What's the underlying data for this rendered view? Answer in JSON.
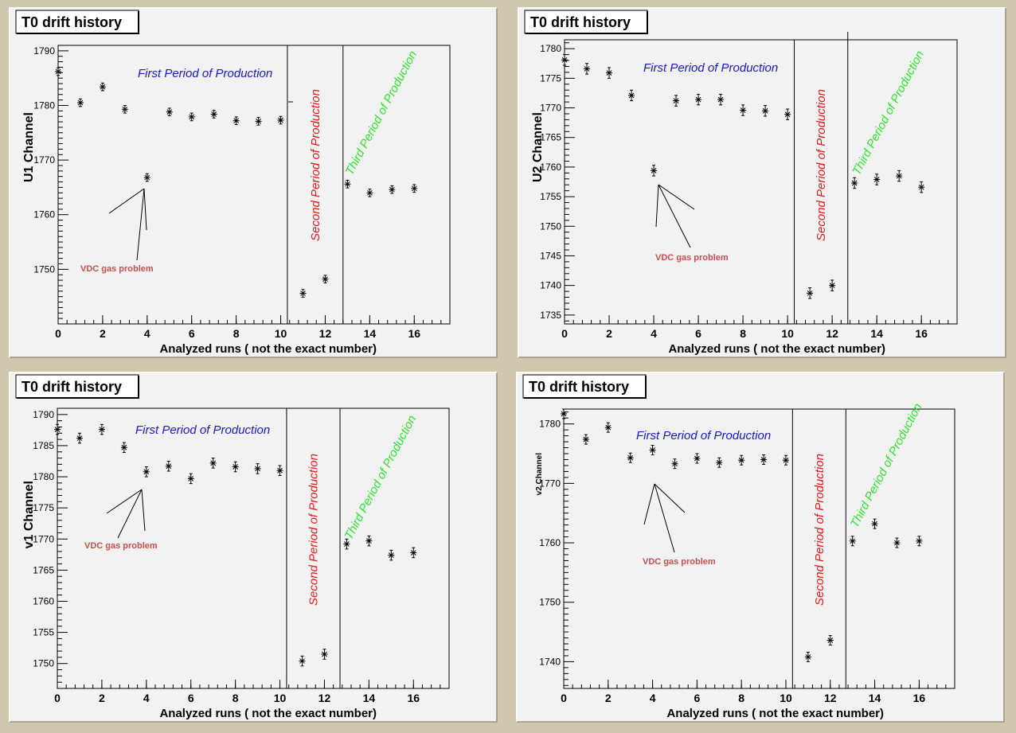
{
  "colors": {
    "background": "#cfc7ae",
    "panel": "#f2f2f2",
    "first_period": "#1a16d0",
    "second_period": "#e8171a",
    "third_period": "#2ee62e",
    "gas_label": "#c9504f"
  },
  "labels": {
    "first_period": "First Period of Production",
    "second_period": "Second Period of Production",
    "third_period": "Third Period of Production",
    "gas_problem": "VDC gas problem"
  },
  "chart_data": [
    {
      "type": "scatter",
      "title": "T0 drift history",
      "xlabel": "Analyzed runs ( not the exact number)",
      "ylabel": "U1 Channel",
      "xlim": [
        0,
        17.6
      ],
      "ylim": [
        1740,
        1791
      ],
      "x_ticks": [
        0,
        2,
        4,
        6,
        8,
        10,
        12,
        14,
        16
      ],
      "y_ticks": [
        1750,
        1760,
        1770,
        1780,
        1790
      ],
      "y_minor_step": 1,
      "period_boundaries": [
        10.3,
        12.8
      ],
      "x": [
        0,
        1,
        2,
        3,
        4,
        5,
        6,
        7,
        8,
        9,
        10,
        11,
        12,
        13,
        14,
        15,
        16
      ],
      "y": [
        1786.2,
        1780.5,
        1783.4,
        1779.3,
        1766.8,
        1778.8,
        1777.9,
        1778.4,
        1777.2,
        1777.1,
        1777.3,
        1745.6,
        1748.2,
        1765.6,
        1764.0,
        1764.6,
        1764.8
      ],
      "yerr": 0.7
    },
    {
      "type": "scatter",
      "title": "T0 drift history",
      "xlabel": "Analyzed runs ( not the exact number)",
      "ylabel": "U2 Channel",
      "xlim": [
        0,
        17.6
      ],
      "ylim": [
        1733.5,
        1781.5
      ],
      "x_ticks": [
        0,
        2,
        4,
        6,
        8,
        10,
        12,
        14,
        16
      ],
      "y_ticks": [
        1735,
        1740,
        1745,
        1750,
        1755,
        1760,
        1765,
        1770,
        1775,
        1780
      ],
      "y_minor_step": 1,
      "period_boundaries": [
        10.3,
        12.7
      ],
      "x": [
        0,
        1,
        2,
        3,
        4,
        5,
        6,
        7,
        8,
        9,
        10,
        11,
        12,
        13,
        14,
        15,
        16
      ],
      "y": [
        1778.1,
        1776.6,
        1775.9,
        1772.1,
        1759.4,
        1771.2,
        1771.4,
        1771.4,
        1769.6,
        1769.5,
        1768.9,
        1738.7,
        1740.0,
        1757.3,
        1757.9,
        1758.5,
        1756.6
      ],
      "yerr": 0.9
    },
    {
      "type": "scatter",
      "title": "T0 drift history",
      "xlabel": "Analyzed runs ( not the exact number)",
      "ylabel": "v1 Channel",
      "xlim": [
        0,
        17.6
      ],
      "ylim": [
        1746,
        1791
      ],
      "x_ticks": [
        0,
        2,
        4,
        6,
        8,
        10,
        12,
        14,
        16
      ],
      "y_ticks": [
        1750,
        1755,
        1760,
        1765,
        1770,
        1775,
        1780,
        1785,
        1790
      ],
      "y_minor_step": 1,
      "period_boundaries": [
        10.3,
        12.7
      ],
      "x": [
        0,
        1,
        2,
        3,
        4,
        5,
        6,
        7,
        8,
        9,
        10,
        11,
        12,
        13,
        14,
        15,
        16
      ],
      "y": [
        1787.6,
        1786.2,
        1787.6,
        1784.7,
        1780.8,
        1781.7,
        1779.7,
        1782.2,
        1781.6,
        1781.3,
        1781.0,
        1750.4,
        1751.5,
        1769.2,
        1769.7,
        1767.4,
        1767.8
      ],
      "yerr": 0.8
    },
    {
      "type": "scatter",
      "title": "T0 drift history",
      "xlabel": "Analyzed runs ( not the exact number)",
      "ylabel": "v2 Channel",
      "xlim": [
        0,
        17.6
      ],
      "ylim": [
        1735.5,
        1782.5
      ],
      "x_ticks": [
        0,
        2,
        4,
        6,
        8,
        10,
        12,
        14,
        16
      ],
      "y_ticks": [
        1740,
        1750,
        1760,
        1770,
        1780
      ],
      "y_minor_step": 1,
      "period_boundaries": [
        10.3,
        12.7
      ],
      "x": [
        0,
        1,
        2,
        3,
        4,
        5,
        6,
        7,
        8,
        9,
        10,
        11,
        12,
        13,
        14,
        15,
        16
      ],
      "y": [
        1781.7,
        1777.4,
        1779.4,
        1774.3,
        1775.6,
        1773.3,
        1774.2,
        1773.5,
        1773.9,
        1774.0,
        1773.9,
        1740.8,
        1743.6,
        1760.3,
        1763.2,
        1760.0,
        1760.3
      ],
      "yerr": 0.8
    }
  ]
}
